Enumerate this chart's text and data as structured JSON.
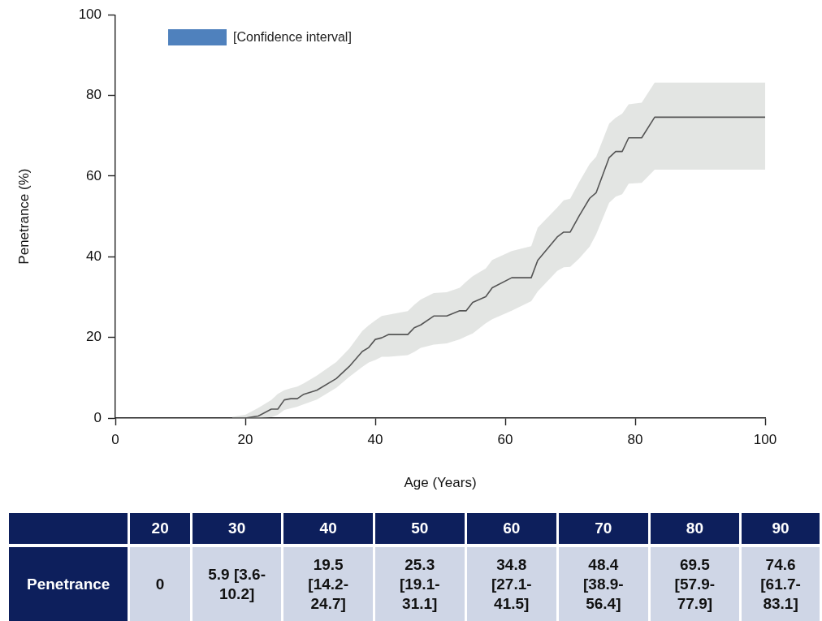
{
  "chart_data": {
    "type": "line",
    "xlabel": "Age (Years)",
    "ylabel": "Penetrance (%)",
    "grid": false,
    "marker": "none",
    "line_style": "solid",
    "xlim": [
      0,
      100
    ],
    "xticks": [
      0,
      20,
      40,
      60,
      80,
      100
    ],
    "ylim": [
      0,
      100
    ],
    "yticks": [
      0,
      20,
      40,
      60,
      80,
      100
    ],
    "x": [
      18,
      20,
      22,
      24,
      25,
      26,
      27,
      28,
      29,
      31,
      34,
      36,
      38,
      39,
      40,
      41,
      42,
      45,
      46,
      47,
      49,
      51,
      53,
      54,
      55,
      57,
      58,
      61,
      64,
      65,
      68,
      69,
      70,
      71.4,
      73,
      74,
      76,
      77,
      78,
      79,
      81,
      83,
      100
    ],
    "series": [
      {
        "color": "#555555",
        "values": [
          0,
          0,
          0.5,
          2.2,
          2.2,
          4.5,
          4.8,
          4.8,
          5.9,
          6.9,
          9.8,
          12.8,
          16.5,
          17.5,
          19.5,
          19.9,
          20.7,
          20.7,
          22.4,
          23.1,
          25.3,
          25.3,
          26.6,
          26.6,
          28.7,
          30.1,
          32.3,
          34.8,
          34.8,
          39.1,
          44.9,
          46.1,
          46.1,
          50.2,
          54.5,
          55.9,
          64.6,
          66.1,
          66.1,
          69.5,
          69.5,
          74.6,
          74.6
        ],
        "lower": [
          0,
          0,
          0,
          0.2,
          0.8,
          2.0,
          2.4,
          2.8,
          3.4,
          4.6,
          7.5,
          10.2,
          12.7,
          13.8,
          14.4,
          15.2,
          15.2,
          15.6,
          16.4,
          17.4,
          18.2,
          18.5,
          19.5,
          20.3,
          21.0,
          23.5,
          24.5,
          26.6,
          29.0,
          31.4,
          36.5,
          37.4,
          37.5,
          39.6,
          42.5,
          45.6,
          53.4,
          54.9,
          55.5,
          58.1,
          58.3,
          61.6,
          61.6
        ],
        "upper": [
          0.3,
          0.8,
          2.5,
          4.5,
          6.0,
          6.9,
          7.4,
          7.8,
          8.6,
          10.5,
          13.9,
          17.2,
          21.6,
          23,
          24.2,
          25.3,
          25.6,
          26.5,
          28.1,
          29.4,
          31.0,
          31.2,
          32.3,
          33.8,
          35.2,
          37.1,
          39.2,
          41.4,
          42.6,
          47.2,
          52.2,
          54,
          54.4,
          58.6,
          63,
          64.8,
          73,
          74.5,
          75.5,
          77.8,
          78.2,
          83.2,
          83.2
        ]
      }
    ],
    "annotations": [
      "[Confidence interval]",
      "20",
      "30",
      "40",
      "50",
      "60",
      "70",
      "80",
      "90",
      "Penetrance",
      "0",
      "5.9 [3.6-10.2]",
      "19.5 [14.2-24.7]",
      "25.3 [19.1-31.1]",
      "34.8 [27.1-41.5]",
      "48.4 [38.9-56.4]",
      "69.5 [57.9-77.9]",
      "74.6 [61.7-83.1]"
    ]
  }
}
